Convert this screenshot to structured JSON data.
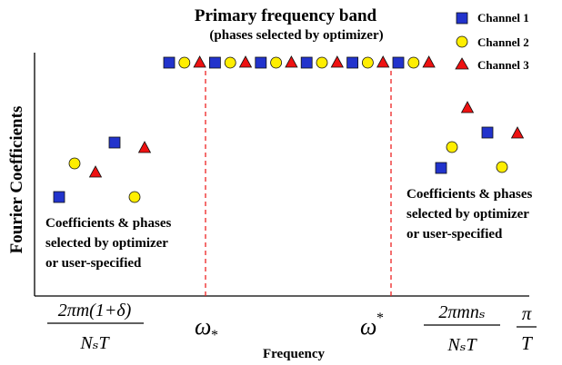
{
  "title": {
    "line1": "Primary frequency band",
    "line2": "(phases selected by optimizer)"
  },
  "legend": {
    "items": [
      {
        "label": "Channel 1",
        "shape": "square",
        "color": "#2233cc"
      },
      {
        "label": "Channel 2",
        "shape": "circle",
        "color": "#ffee00"
      },
      {
        "label": "Channel 3",
        "shape": "triangle",
        "color": "#ee1111"
      }
    ]
  },
  "axes": {
    "ylabel": "Fourier Coefficients",
    "xlabel": "Frequency"
  },
  "annotations": {
    "left": [
      "Coefficients & phases",
      "selected by optimizer",
      "or user-specified"
    ],
    "right": [
      "Coefficients & phases",
      "selected by optimizer",
      "or user-specified"
    ]
  },
  "x_tick_labels": {
    "tick1_num": "2πm(1+δ)",
    "tick1_den": "NₛT",
    "omega_lower": "ω",
    "omega_lower_sub": "*",
    "omega_upper": "ω",
    "omega_upper_sup": "*",
    "tick4_num": "2πmnₛ",
    "tick4_den": "NₛT",
    "tick5_num": "π",
    "tick5_den": "T"
  },
  "colors": {
    "channel1": "#2233cc",
    "channel2": "#ffee00",
    "channel3": "#ee1111",
    "boundary_line": "#ee2222",
    "axis": "#000000"
  }
}
